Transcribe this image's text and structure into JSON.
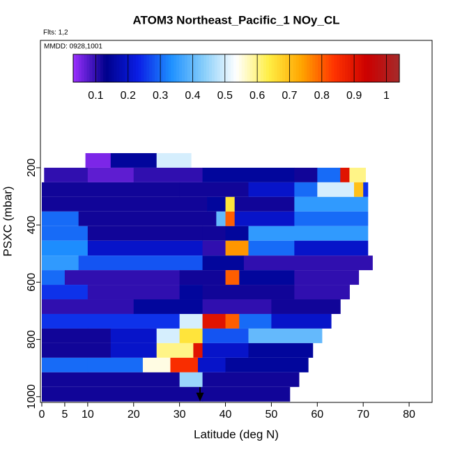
{
  "chart_data": {
    "type": "heatmap",
    "title": "ATOM3 Northeast_Pacific_1 NOy_CL",
    "subtitle": "Flts: 1,2",
    "annotation": "MMDD: 0928,1001",
    "x_label": "Latitude (deg N)",
    "y_label": "PSXC (mbar)",
    "xlim": [
      -0.3,
      85
    ],
    "xticks": [
      0,
      5,
      10,
      20,
      30,
      40,
      50,
      60,
      70,
      80
    ],
    "ylim": [
      1020,
      -245
    ],
    "yticks": [
      200,
      400,
      600,
      800,
      1000
    ],
    "clim": [
      0.03,
      1.04
    ],
    "cticks": [
      0.1,
      0.2,
      0.3,
      0.4,
      0.5,
      0.6,
      0.7,
      0.8,
      0.9,
      1.0
    ],
    "colors": [
      "#9b30ff",
      "#00008b",
      "#0a1ee6",
      "#1e90ff",
      "#87cefa",
      "#ffffff",
      "#ffee44",
      "#ffa500",
      "#ff3300",
      "#cc0000",
      "#a52a2a"
    ],
    "rows": [
      {
        "p": [
          149,
          200
        ],
        "segments": [
          [
            9.5,
            15,
            0.05
          ],
          [
            15,
            25,
            0.15
          ],
          [
            25,
            32.5,
            0.5
          ]
        ]
      },
      {
        "p": [
          200,
          251
        ],
        "segments": [
          [
            0.5,
            10,
            0.1
          ],
          [
            10,
            20,
            0.07
          ],
          [
            20,
            35,
            0.1
          ],
          [
            35,
            55,
            0.15
          ],
          [
            55,
            60,
            0.12
          ],
          [
            60,
            65,
            0.3
          ],
          [
            65,
            67,
            0.9
          ],
          [
            67,
            70.5,
            0.6
          ]
        ]
      },
      {
        "p": [
          251,
          302
        ],
        "segments": [
          [
            0,
            30,
            0.12
          ],
          [
            30,
            45,
            0.12
          ],
          [
            45,
            55,
            0.2
          ],
          [
            55,
            60,
            0.3
          ],
          [
            60,
            68,
            0.5
          ],
          [
            68,
            70,
            0.7
          ],
          [
            70,
            71,
            0.25
          ]
        ]
      },
      {
        "p": [
          302,
          353
        ],
        "segments": [
          [
            0,
            36,
            0.12
          ],
          [
            36,
            40,
            0.15
          ],
          [
            40,
            42,
            0.65
          ],
          [
            42,
            55,
            0.12
          ],
          [
            55,
            71,
            0.35
          ]
        ]
      },
      {
        "p": [
          353,
          404
        ],
        "segments": [
          [
            0,
            8,
            0.3
          ],
          [
            8,
            38,
            0.12
          ],
          [
            38,
            40,
            0.4
          ],
          [
            40,
            42,
            0.8
          ],
          [
            42,
            55,
            0.2
          ],
          [
            55,
            71,
            0.3
          ]
        ]
      },
      {
        "p": [
          404,
          455
        ],
        "segments": [
          [
            0,
            10,
            0.3
          ],
          [
            10,
            35,
            0.12
          ],
          [
            35,
            40,
            0.12
          ],
          [
            40,
            45,
            0.15
          ],
          [
            45,
            71,
            0.35
          ]
        ]
      },
      {
        "p": [
          455,
          507
        ],
        "segments": [
          [
            0,
            10,
            0.33
          ],
          [
            10,
            35,
            0.2
          ],
          [
            35,
            40,
            0.1
          ],
          [
            40,
            45,
            0.75
          ],
          [
            45,
            55,
            0.3
          ],
          [
            55,
            71,
            0.2
          ]
        ]
      },
      {
        "p": [
          507,
          558
        ],
        "segments": [
          [
            0,
            8,
            0.35
          ],
          [
            8,
            35,
            0.28
          ],
          [
            35,
            40,
            0.15
          ],
          [
            40,
            44,
            0.15
          ],
          [
            44,
            72,
            0.1
          ]
        ]
      },
      {
        "p": [
          558,
          609
        ],
        "segments": [
          [
            0,
            5,
            0.3
          ],
          [
            5,
            30,
            0.1
          ],
          [
            30,
            40,
            0.12
          ],
          [
            40,
            43,
            0.8
          ],
          [
            43,
            55,
            0.15
          ],
          [
            55,
            69,
            0.1
          ]
        ]
      },
      {
        "p": [
          609,
          660
        ],
        "segments": [
          [
            0,
            10,
            0.25
          ],
          [
            10,
            30,
            0.1
          ],
          [
            30,
            35,
            0.15
          ],
          [
            35,
            55,
            0.12
          ],
          [
            55,
            67,
            0.1
          ]
        ]
      },
      {
        "p": [
          660,
          711
        ],
        "segments": [
          [
            0,
            20,
            0.1
          ],
          [
            20,
            35,
            0.15
          ],
          [
            35,
            50,
            0.1
          ],
          [
            50,
            65,
            0.12
          ]
        ]
      },
      {
        "p": [
          711,
          762
        ],
        "segments": [
          [
            0,
            10,
            0.25
          ],
          [
            10,
            30,
            0.25
          ],
          [
            30,
            35,
            0.5
          ],
          [
            35,
            40,
            0.9
          ],
          [
            40,
            43,
            0.8
          ],
          [
            43,
            50,
            0.3
          ],
          [
            50,
            63,
            0.2
          ]
        ]
      },
      {
        "p": [
          762,
          813
        ],
        "segments": [
          [
            0,
            15,
            0.12
          ],
          [
            15,
            25,
            0.2
          ],
          [
            25,
            30,
            0.5
          ],
          [
            30,
            35,
            0.65
          ],
          [
            35,
            45,
            0.28
          ],
          [
            45,
            61,
            0.4
          ]
        ]
      },
      {
        "p": [
          813,
          864
        ],
        "segments": [
          [
            0,
            15,
            0.12
          ],
          [
            15,
            25,
            0.2
          ],
          [
            25,
            33,
            0.6
          ],
          [
            33,
            35,
            0.9
          ],
          [
            35,
            45,
            0.2
          ],
          [
            45,
            59,
            0.15
          ]
        ]
      },
      {
        "p": [
          864,
          915
        ],
        "segments": [
          [
            0,
            10,
            0.3
          ],
          [
            10,
            22,
            0.3
          ],
          [
            22,
            28,
            0.55
          ],
          [
            28,
            34,
            0.85
          ],
          [
            34,
            40,
            0.2
          ],
          [
            40,
            58,
            0.15
          ]
        ]
      },
      {
        "p": [
          915,
          966
        ],
        "segments": [
          [
            0,
            30,
            0.12
          ],
          [
            30,
            35,
            0.45
          ],
          [
            35,
            56,
            0.12
          ]
        ]
      },
      {
        "p": [
          966,
          1017
        ],
        "segments": [
          [
            0,
            35,
            0.12
          ],
          [
            35,
            54,
            0.12
          ]
        ]
      }
    ]
  }
}
